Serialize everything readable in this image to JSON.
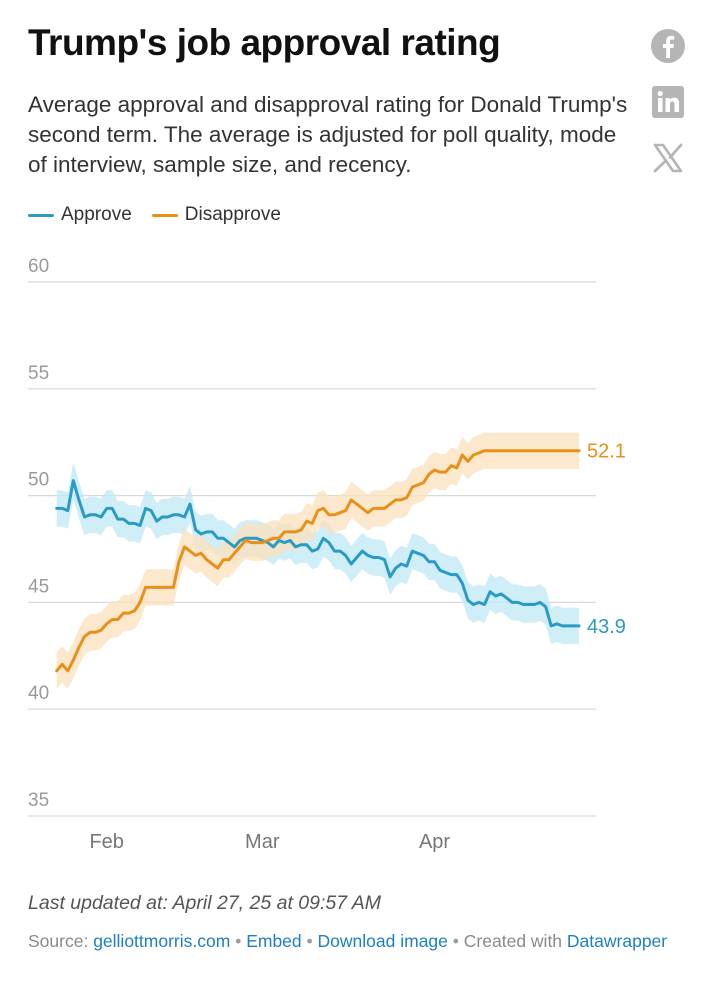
{
  "header": {
    "title": "Trump's job approval rating",
    "subtitle": "Average approval and disapproval rating for Donald Trump's second term. The average is adjusted for poll quality, mode of interview, sample size, and recency."
  },
  "share": [
    {
      "icon": "facebook-icon"
    },
    {
      "icon": "linkedin-icon",
      "label": "in"
    },
    {
      "icon": "x-icon",
      "label": "𝕏"
    }
  ],
  "colors": {
    "approve": "#2a9bc4",
    "approve_band": "#bfe8f6",
    "disapprove": "#e8901a",
    "disapprove_band": "#fbe0bb",
    "grid": "#d9d9d9",
    "axis_text": "#9a9a9a"
  },
  "chart_data": {
    "type": "line",
    "title": "Trump's job approval rating",
    "ylim": [
      35,
      60
    ],
    "yticks": [
      35,
      40,
      45,
      50,
      55,
      60
    ],
    "xlim": [
      "2025-01-20",
      "2025-04-27"
    ],
    "xticks": [
      {
        "label": "Feb",
        "date": "2025-02-01"
      },
      {
        "label": "Mar",
        "date": "2025-03-01"
      },
      {
        "label": "Apr",
        "date": "2025-04-01"
      }
    ],
    "grid": true,
    "legend": "top-left",
    "series": [
      {
        "name": "Approve",
        "color": "#2a9bc4",
        "end_label": "43.9",
        "x": [
          "2025-01-23",
          "2025-01-24",
          "2025-01-25",
          "2025-01-26",
          "2025-01-27",
          "2025-01-28",
          "2025-01-29",
          "2025-01-30",
          "2025-01-31",
          "2025-02-01",
          "2025-02-02",
          "2025-02-03",
          "2025-02-04",
          "2025-02-05",
          "2025-02-06",
          "2025-02-07",
          "2025-02-08",
          "2025-02-09",
          "2025-02-10",
          "2025-02-11",
          "2025-02-12",
          "2025-02-13",
          "2025-02-14",
          "2025-02-15",
          "2025-02-16",
          "2025-02-17",
          "2025-02-18",
          "2025-02-19",
          "2025-02-20",
          "2025-02-21",
          "2025-02-22",
          "2025-02-23",
          "2025-02-24",
          "2025-02-25",
          "2025-02-26",
          "2025-02-27",
          "2025-02-28",
          "2025-03-01",
          "2025-03-02",
          "2025-03-03",
          "2025-03-04",
          "2025-03-05",
          "2025-03-06",
          "2025-03-07",
          "2025-03-08",
          "2025-03-09",
          "2025-03-10",
          "2025-03-11",
          "2025-03-12",
          "2025-03-13",
          "2025-03-14",
          "2025-03-15",
          "2025-03-16",
          "2025-03-17",
          "2025-03-18",
          "2025-03-19",
          "2025-03-20",
          "2025-03-21",
          "2025-03-22",
          "2025-03-23",
          "2025-03-24",
          "2025-03-25",
          "2025-03-26",
          "2025-03-27",
          "2025-03-28",
          "2025-03-29",
          "2025-03-30",
          "2025-03-31",
          "2025-04-01",
          "2025-04-02",
          "2025-04-03",
          "2025-04-04",
          "2025-04-05",
          "2025-04-06",
          "2025-04-07",
          "2025-04-08",
          "2025-04-09",
          "2025-04-10",
          "2025-04-11",
          "2025-04-12",
          "2025-04-13",
          "2025-04-14",
          "2025-04-15",
          "2025-04-16",
          "2025-04-17",
          "2025-04-18",
          "2025-04-19",
          "2025-04-20",
          "2025-04-21",
          "2025-04-22",
          "2025-04-23",
          "2025-04-24",
          "2025-04-25",
          "2025-04-26",
          "2025-04-27"
        ],
        "y": [
          49.4,
          49.4,
          49.3,
          50.7,
          49.8,
          49.0,
          49.1,
          49.1,
          49.0,
          49.4,
          49.4,
          48.9,
          48.9,
          48.7,
          48.7,
          48.6,
          49.4,
          49.3,
          48.8,
          49.0,
          49.0,
          49.1,
          49.1,
          49.0,
          49.6,
          48.4,
          48.2,
          48.3,
          48.3,
          48.0,
          48.0,
          47.8,
          47.6,
          47.9,
          48.0,
          48.0,
          48.0,
          47.9,
          47.8,
          47.6,
          47.9,
          47.8,
          47.9,
          47.6,
          47.7,
          47.7,
          47.4,
          47.5,
          48.0,
          47.8,
          47.4,
          47.4,
          47.2,
          46.8,
          47.1,
          47.4,
          47.2,
          47.1,
          47.1,
          47.0,
          46.2,
          46.6,
          46.8,
          46.7,
          47.4,
          47.3,
          47.2,
          46.9,
          46.9,
          46.5,
          46.4,
          46.3,
          46.3,
          45.9,
          45.1,
          44.9,
          45.0,
          44.9,
          45.5,
          45.3,
          45.4,
          45.2,
          45.0,
          45.0,
          44.9,
          44.9,
          44.9,
          45.0,
          44.8,
          43.9,
          44.0,
          43.9,
          43.9,
          43.9,
          43.9
        ]
      },
      {
        "name": "Disapprove",
        "color": "#e8901a",
        "end_label": "52.1",
        "x": [
          "2025-01-23",
          "2025-01-24",
          "2025-01-25",
          "2025-01-26",
          "2025-01-27",
          "2025-01-28",
          "2025-01-29",
          "2025-01-30",
          "2025-01-31",
          "2025-02-01",
          "2025-02-02",
          "2025-02-03",
          "2025-02-04",
          "2025-02-05",
          "2025-02-06",
          "2025-02-07",
          "2025-02-08",
          "2025-02-09",
          "2025-02-10",
          "2025-02-11",
          "2025-02-12",
          "2025-02-13",
          "2025-02-14",
          "2025-02-15",
          "2025-02-16",
          "2025-02-17",
          "2025-02-18",
          "2025-02-19",
          "2025-02-20",
          "2025-02-21",
          "2025-02-22",
          "2025-02-23",
          "2025-02-24",
          "2025-02-25",
          "2025-02-26",
          "2025-02-27",
          "2025-02-28",
          "2025-03-01",
          "2025-03-02",
          "2025-03-03",
          "2025-03-04",
          "2025-03-05",
          "2025-03-06",
          "2025-03-07",
          "2025-03-08",
          "2025-03-09",
          "2025-03-10",
          "2025-03-11",
          "2025-03-12",
          "2025-03-13",
          "2025-03-14",
          "2025-03-15",
          "2025-03-16",
          "2025-03-17",
          "2025-03-18",
          "2025-03-19",
          "2025-03-20",
          "2025-03-21",
          "2025-03-22",
          "2025-03-23",
          "2025-03-24",
          "2025-03-25",
          "2025-03-26",
          "2025-03-27",
          "2025-03-28",
          "2025-03-29",
          "2025-03-30",
          "2025-03-31",
          "2025-04-01",
          "2025-04-02",
          "2025-04-03",
          "2025-04-04",
          "2025-04-05",
          "2025-04-06",
          "2025-04-07",
          "2025-04-08",
          "2025-04-09",
          "2025-04-10",
          "2025-04-11",
          "2025-04-12",
          "2025-04-13",
          "2025-04-14",
          "2025-04-15",
          "2025-04-16",
          "2025-04-17",
          "2025-04-18",
          "2025-04-19",
          "2025-04-20",
          "2025-04-21",
          "2025-04-22",
          "2025-04-23",
          "2025-04-24",
          "2025-04-25",
          "2025-04-26",
          "2025-04-27"
        ],
        "y": [
          41.8,
          42.1,
          41.8,
          42.3,
          42.9,
          43.4,
          43.6,
          43.6,
          43.7,
          44.0,
          44.2,
          44.2,
          44.5,
          44.5,
          44.6,
          45.0,
          45.7,
          45.7,
          45.7,
          45.7,
          45.7,
          45.7,
          46.9,
          47.6,
          47.4,
          47.2,
          47.3,
          47.0,
          46.8,
          46.6,
          47.0,
          47.0,
          47.3,
          47.6,
          47.9,
          47.8,
          47.8,
          47.8,
          47.9,
          48.0,
          48.0,
          48.3,
          48.3,
          48.3,
          48.4,
          48.8,
          48.7,
          49.3,
          49.4,
          49.1,
          49.1,
          49.2,
          49.3,
          49.8,
          49.6,
          49.4,
          49.2,
          49.4,
          49.4,
          49.4,
          49.6,
          49.8,
          49.8,
          49.9,
          50.4,
          50.5,
          50.6,
          51.0,
          51.2,
          51.1,
          51.1,
          51.4,
          51.3,
          51.9,
          51.6,
          51.9,
          52.0,
          52.1,
          52.1,
          52.1,
          52.1,
          52.1,
          52.1,
          52.1,
          52.1,
          52.1,
          52.1,
          52.1,
          52.1,
          52.1,
          52.1,
          52.1,
          52.1,
          52.1,
          52.1
        ]
      }
    ]
  },
  "legend": {
    "approve": "Approve",
    "disapprove": "Disapprove"
  },
  "footer": {
    "updated": "Last updated at: April 27, 25 at 09:57 AM",
    "source_prefix": "Source:",
    "source_link": "gelliottmorris.com",
    "embed": "Embed",
    "download": "Download image",
    "created_with": "Created with",
    "datawrapper": "Datawrapper"
  }
}
